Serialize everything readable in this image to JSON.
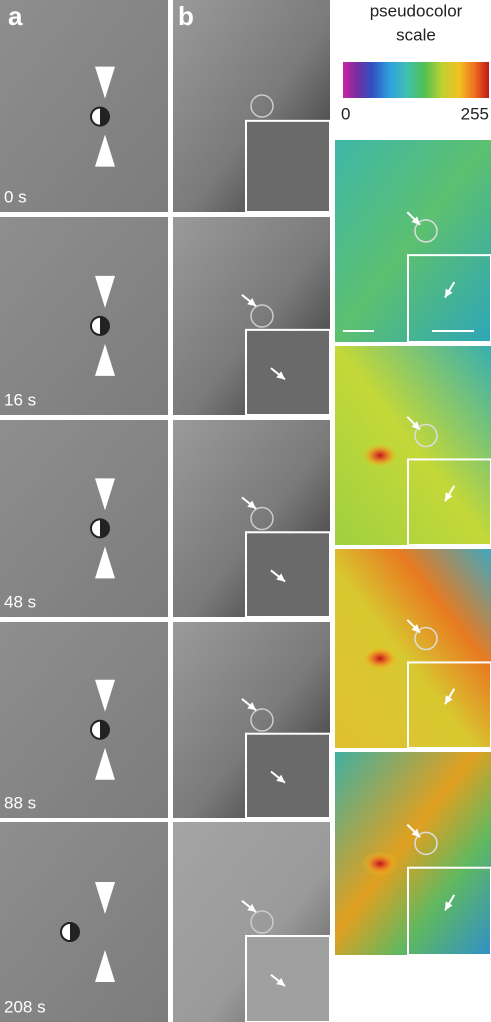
{
  "panels": {
    "a": {
      "label": "a"
    },
    "b": {
      "label": "b"
    }
  },
  "frames": [
    {
      "time": "0 s"
    },
    {
      "time": "16 s"
    },
    {
      "time": "48 s"
    },
    {
      "time": "88 s"
    },
    {
      "time": "208 s"
    }
  ],
  "scale": {
    "title_lines": [
      "pseudocolor",
      "scale"
    ],
    "min": 0,
    "max": 255
  }
}
